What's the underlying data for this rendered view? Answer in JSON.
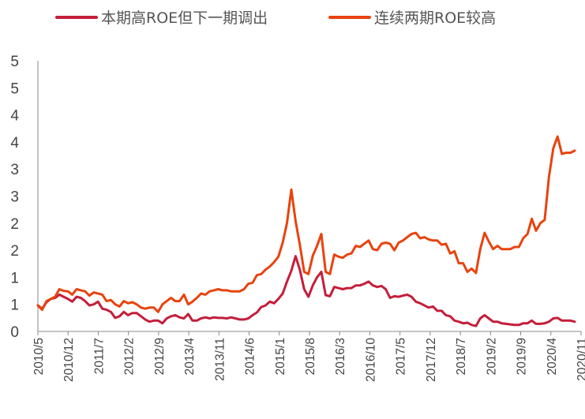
{
  "chart_data": {
    "type": "line",
    "title": "",
    "xlabel": "",
    "ylabel": "",
    "ylim": [
      0,
      5
    ],
    "yticks": [
      "0",
      "1",
      "1",
      "2",
      "2",
      "3",
      "3",
      "4",
      "4",
      "5",
      "5"
    ],
    "xticks": [
      "2010/5",
      "2010/12",
      "2011/7",
      "2012/2",
      "2012/9",
      "2013/4",
      "2013/11",
      "2014/6",
      "2015/1",
      "2015/8",
      "2016/3",
      "2016/10",
      "2017/5",
      "2017/12",
      "2018/7",
      "2019/2",
      "2019/9",
      "2020/4",
      "2020/11"
    ],
    "x_start": "2010/5",
    "grid": false,
    "legend_position": "top",
    "series": [
      {
        "name": "本期高ROE但下一期调出",
        "color": "#c41e3a",
        "values": [
          0.48,
          0.42,
          0.54,
          0.6,
          0.62,
          0.68,
          0.64,
          0.6,
          0.55,
          0.64,
          0.62,
          0.56,
          0.48,
          0.5,
          0.55,
          0.42,
          0.4,
          0.36,
          0.25,
          0.28,
          0.36,
          0.3,
          0.34,
          0.34,
          0.28,
          0.22,
          0.18,
          0.2,
          0.2,
          0.15,
          0.24,
          0.28,
          0.3,
          0.26,
          0.24,
          0.32,
          0.2,
          0.2,
          0.24,
          0.26,
          0.24,
          0.26,
          0.25,
          0.25,
          0.24,
          0.26,
          0.24,
          0.22,
          0.22,
          0.24,
          0.3,
          0.35,
          0.45,
          0.48,
          0.55,
          0.52,
          0.6,
          0.7,
          0.92,
          1.12,
          1.39,
          1.14,
          0.78,
          0.64,
          0.85,
          1.0,
          1.1,
          0.67,
          0.65,
          0.82,
          0.8,
          0.78,
          0.8,
          0.8,
          0.85,
          0.85,
          0.88,
          0.92,
          0.85,
          0.82,
          0.84,
          0.78,
          0.62,
          0.65,
          0.64,
          0.66,
          0.68,
          0.64,
          0.55,
          0.52,
          0.48,
          0.44,
          0.46,
          0.38,
          0.38,
          0.3,
          0.28,
          0.2,
          0.18,
          0.15,
          0.16,
          0.12,
          0.1,
          0.24,
          0.3,
          0.24,
          0.18,
          0.18,
          0.15,
          0.14,
          0.13,
          0.12,
          0.12,
          0.15,
          0.15,
          0.2,
          0.14,
          0.14,
          0.15,
          0.18,
          0.24,
          0.25,
          0.2,
          0.2,
          0.2,
          0.18
        ]
      },
      {
        "name": "连续两期ROE较高",
        "color": "#e8430e",
        "values": [
          0.48,
          0.4,
          0.56,
          0.6,
          0.64,
          0.78,
          0.75,
          0.74,
          0.68,
          0.78,
          0.76,
          0.74,
          0.66,
          0.72,
          0.7,
          0.68,
          0.56,
          0.58,
          0.5,
          0.46,
          0.56,
          0.52,
          0.54,
          0.5,
          0.44,
          0.42,
          0.44,
          0.44,
          0.36,
          0.5,
          0.56,
          0.62,
          0.56,
          0.56,
          0.68,
          0.5,
          0.55,
          0.62,
          0.7,
          0.68,
          0.74,
          0.76,
          0.78,
          0.76,
          0.76,
          0.74,
          0.74,
          0.74,
          0.78,
          0.88,
          0.9,
          1.04,
          1.06,
          1.14,
          1.2,
          1.28,
          1.38,
          1.64,
          2.0,
          2.62,
          2.04,
          1.6,
          1.1,
          1.06,
          1.4,
          1.58,
          1.8,
          1.1,
          1.06,
          1.42,
          1.38,
          1.36,
          1.42,
          1.44,
          1.58,
          1.56,
          1.62,
          1.68,
          1.52,
          1.5,
          1.62,
          1.64,
          1.62,
          1.5,
          1.64,
          1.68,
          1.74,
          1.8,
          1.82,
          1.72,
          1.74,
          1.7,
          1.68,
          1.68,
          1.6,
          1.62,
          1.44,
          1.48,
          1.26,
          1.26,
          1.1,
          1.16,
          1.08,
          1.52,
          1.82,
          1.66,
          1.52,
          1.58,
          1.52,
          1.52,
          1.52,
          1.56,
          1.56,
          1.72,
          1.8,
          2.08,
          1.86,
          2.0,
          2.06,
          2.86,
          3.38,
          3.6,
          3.28,
          3.3,
          3.3,
          3.34
        ]
      }
    ]
  }
}
